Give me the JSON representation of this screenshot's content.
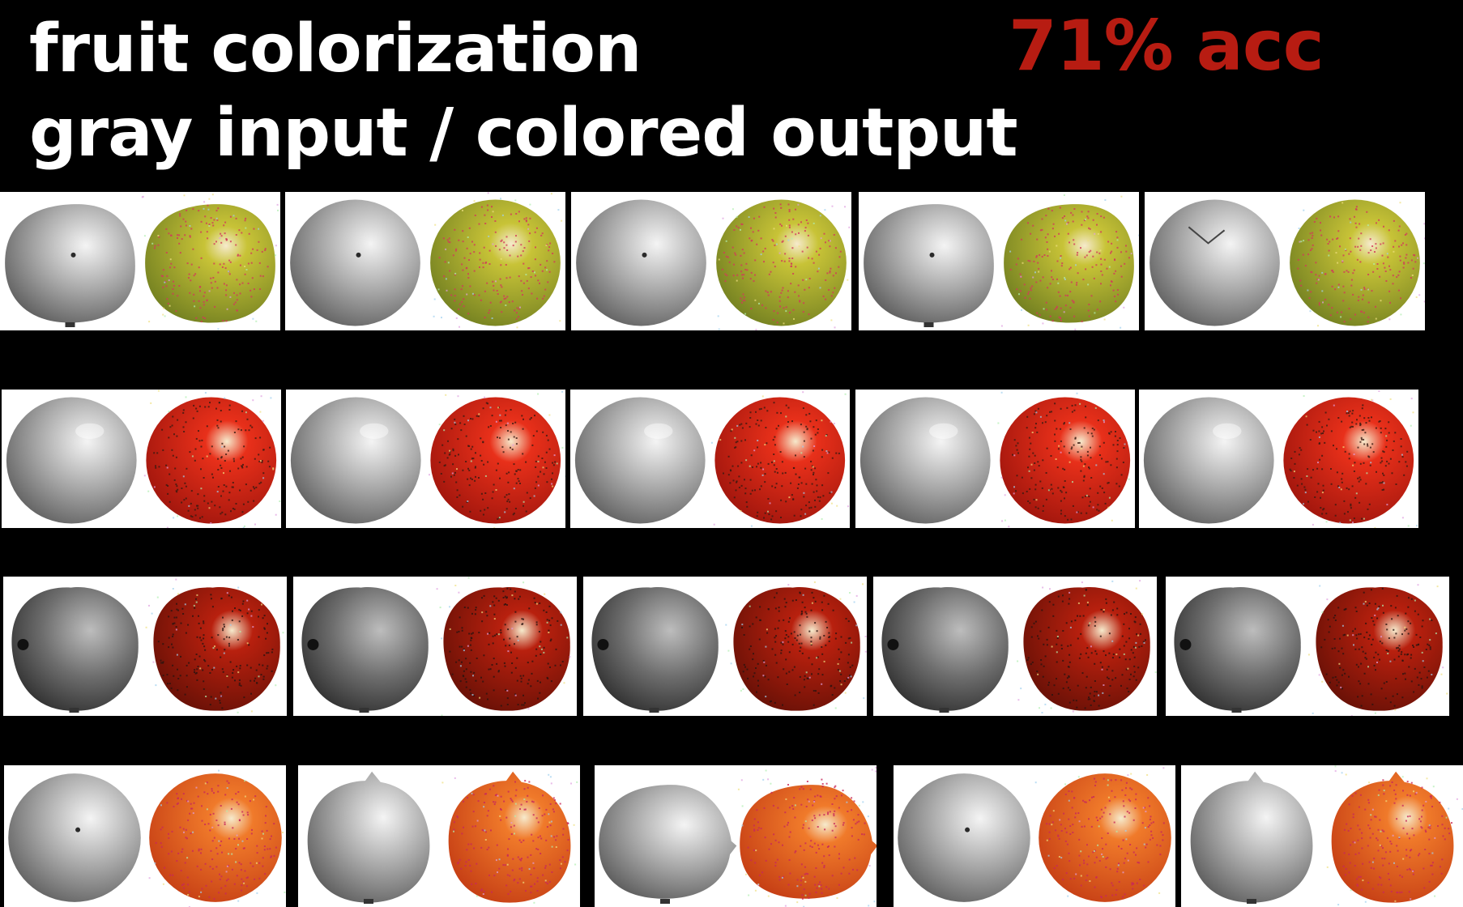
{
  "header": {
    "title_line_1": "fruit colorization",
    "title_line_2": "gray input / colored output",
    "accuracy_label": "71% acc",
    "accuracy_color": "#b71c12"
  },
  "rows": [
    {
      "fruit_tint": "#c8c337",
      "fruit_tint_dark": "#6f7d20",
      "speckle_color": "#d23a5a",
      "pairs": [
        {
          "gray_shape": "flattened",
          "gray_detail": "stem-dot"
        },
        {
          "gray_shape": "round",
          "gray_detail": "navel"
        },
        {
          "gray_shape": "round",
          "gray_detail": "navel"
        },
        {
          "gray_shape": "flattened",
          "gray_detail": "stem-dot"
        },
        {
          "gray_shape": "round",
          "gray_detail": "crease"
        }
      ]
    },
    {
      "fruit_tint": "#e8301a",
      "fruit_tint_dark": "#9c140c",
      "speckle_color": "#3a1a12",
      "pairs": [
        {
          "gray_shape": "round",
          "gray_detail": "highlight"
        },
        {
          "gray_shape": "round",
          "gray_detail": "highlight"
        },
        {
          "gray_shape": "round",
          "gray_detail": "highlight"
        },
        {
          "gray_shape": "round",
          "gray_detail": "highlight"
        },
        {
          "gray_shape": "round",
          "gray_detail": "highlight"
        }
      ]
    },
    {
      "fruit_tint": "#b8200e",
      "fruit_tint_dark": "#641006",
      "speckle_color": "#2a1410",
      "pairs": [
        {
          "gray_shape": "lobed",
          "gray_detail": "calyx"
        },
        {
          "gray_shape": "lobed",
          "gray_detail": "calyx"
        },
        {
          "gray_shape": "lobed",
          "gray_detail": "calyx"
        },
        {
          "gray_shape": "lobed",
          "gray_detail": "calyx"
        },
        {
          "gray_shape": "lobed",
          "gray_detail": "calyx"
        }
      ]
    },
    {
      "fruit_tint": "#f07a2a",
      "fruit_tint_dark": "#c43c14",
      "speckle_color": "#c8285a",
      "pairs": [
        {
          "gray_shape": "round",
          "gray_detail": "navel"
        },
        {
          "gray_shape": "lemon",
          "gray_detail": "tip"
        },
        {
          "gray_shape": "oval",
          "gray_detail": "tip"
        },
        {
          "gray_shape": "round",
          "gray_detail": "navel"
        },
        {
          "gray_shape": "lemon",
          "gray_detail": "tip"
        }
      ]
    }
  ]
}
